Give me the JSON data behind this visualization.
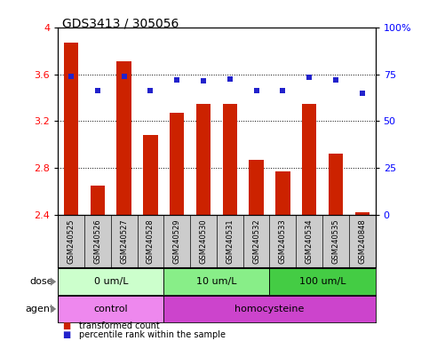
{
  "title": "GDS3413 / 305056",
  "samples": [
    "GSM240525",
    "GSM240526",
    "GSM240527",
    "GSM240528",
    "GSM240529",
    "GSM240530",
    "GSM240531",
    "GSM240532",
    "GSM240533",
    "GSM240534",
    "GSM240535",
    "GSM240848"
  ],
  "red_values": [
    3.87,
    2.65,
    3.71,
    3.08,
    3.27,
    3.35,
    3.35,
    2.87,
    2.77,
    3.35,
    2.92,
    2.42
  ],
  "blue_values": [
    3.58,
    3.46,
    3.58,
    3.46,
    3.55,
    3.54,
    3.56,
    3.46,
    3.46,
    3.57,
    3.55,
    3.44
  ],
  "ylim_left": [
    2.4,
    4.0
  ],
  "ylim_right": [
    0,
    100
  ],
  "yticks_left": [
    2.4,
    2.8,
    3.2,
    3.6,
    4.0
  ],
  "ytick_labels_left": [
    "2.4",
    "2.8",
    "3.2",
    "3.6",
    "4"
  ],
  "yticks_right": [
    0,
    25,
    50,
    75,
    100
  ],
  "ytick_labels_right": [
    "0",
    "25",
    "50",
    "75",
    "100%"
  ],
  "hlines": [
    2.8,
    3.2,
    3.6
  ],
  "dose_groups": [
    {
      "label": "0 um/L",
      "start": 0,
      "end": 4,
      "color": "#ccffcc"
    },
    {
      "label": "10 um/L",
      "start": 4,
      "end": 8,
      "color": "#88ee88"
    },
    {
      "label": "100 um/L",
      "start": 8,
      "end": 12,
      "color": "#44cc44"
    }
  ],
  "agent_groups": [
    {
      "label": "control",
      "start": 0,
      "end": 4,
      "color": "#ee88ee"
    },
    {
      "label": "homocysteine",
      "start": 4,
      "end": 12,
      "color": "#cc44cc"
    }
  ],
  "bar_color": "#cc2200",
  "dot_color": "#2222cc",
  "bar_width": 0.55,
  "legend_items": [
    {
      "color": "#cc2200",
      "label": "transformed count",
      "marker": "s"
    },
    {
      "color": "#2222cc",
      "label": "percentile rank within the sample",
      "marker": "s"
    }
  ],
  "dose_label": "dose",
  "agent_label": "agent",
  "sample_box_color": "#cccccc",
  "background_color": "#ffffff",
  "title_fontsize": 10,
  "tick_fontsize": 8,
  "label_fontsize": 8,
  "row_fontsize": 8
}
